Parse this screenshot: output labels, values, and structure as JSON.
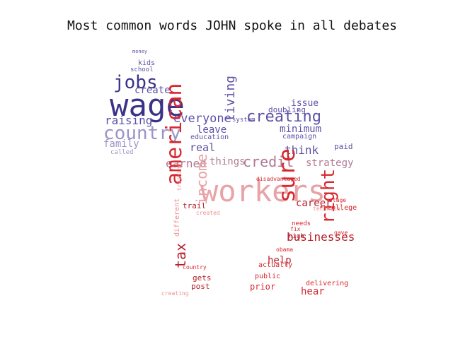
{
  "title": "Most common words JOHN spoke in all debates",
  "palette": {
    "purple_dark": "#3b3289",
    "purple": "#5d52a6",
    "purple_light": "#9b94c8",
    "mauve": "#b07a92",
    "pink_light": "#e8a3a8",
    "red": "#d7282f",
    "red_dark": "#b51f2a",
    "red_light": "#ef8f8f"
  },
  "words": [
    {
      "text": "wage",
      "color": "purple_dark",
      "emphasis": "largest"
    },
    {
      "text": "jobs",
      "color": "purple_dark"
    },
    {
      "text": "country",
      "color": "purple_light"
    },
    {
      "text": "creating",
      "color": "purple"
    },
    {
      "text": "everyone",
      "color": "purple"
    },
    {
      "text": "raising",
      "color": "purple"
    },
    {
      "text": "create",
      "color": "purple"
    },
    {
      "text": "family",
      "color": "purple_light"
    },
    {
      "text": "leave",
      "color": "purple"
    },
    {
      "text": "minimum",
      "color": "purple"
    },
    {
      "text": "credit",
      "color": "mauve"
    },
    {
      "text": "strategy",
      "color": "mauve"
    },
    {
      "text": "earned",
      "color": "mauve"
    },
    {
      "text": "things",
      "color": "mauve"
    },
    {
      "text": "living",
      "color": "purple"
    },
    {
      "text": "think",
      "color": "purple"
    },
    {
      "text": "real",
      "color": "purple"
    },
    {
      "text": "issue",
      "color": "purple"
    },
    {
      "text": "doubling",
      "color": "purple"
    },
    {
      "text": "paid",
      "color": "purple"
    },
    {
      "text": "campaign",
      "color": "purple"
    },
    {
      "text": "education",
      "color": "purple"
    },
    {
      "text": "system",
      "color": "purple"
    },
    {
      "text": "kids",
      "color": "purple"
    },
    {
      "text": "school",
      "color": "purple"
    },
    {
      "text": "money",
      "color": "purple"
    },
    {
      "text": "called",
      "color": "purple_light"
    },
    {
      "text": "workers",
      "color": "pink_light",
      "emphasis": "largest"
    },
    {
      "text": "american",
      "color": "red"
    },
    {
      "text": "sure",
      "color": "red"
    },
    {
      "text": "right",
      "color": "red"
    },
    {
      "text": "income",
      "color": "pink_light"
    },
    {
      "text": "tax",
      "color": "red_dark"
    },
    {
      "text": "career",
      "color": "red_dark"
    },
    {
      "text": "businesses",
      "color": "red_dark"
    },
    {
      "text": "help",
      "color": "red_dark"
    },
    {
      "text": "hear",
      "color": "red"
    },
    {
      "text": "college",
      "color": "red"
    },
    {
      "text": "trail",
      "color": "red_dark"
    },
    {
      "text": "actually",
      "color": "red"
    },
    {
      "text": "public",
      "color": "red"
    },
    {
      "text": "prior",
      "color": "red"
    },
    {
      "text": "delivering",
      "color": "red"
    },
    {
      "text": "post",
      "color": "red_dark"
    },
    {
      "text": "gets",
      "color": "red_dark"
    },
    {
      "text": "needs",
      "color": "red"
    },
    {
      "text": "different",
      "color": "red_light"
    },
    {
      "text": "training",
      "color": "red_light"
    },
    {
      "text": "stage",
      "color": "red"
    },
    {
      "text": "technical",
      "color": "red_light"
    },
    {
      "text": "high",
      "color": "red_dark"
    },
    {
      "text": "fix",
      "color": "red"
    },
    {
      "text": "obama",
      "color": "red"
    },
    {
      "text": "creating",
      "color": "red_light"
    },
    {
      "text": "created",
      "color": "red_light"
    },
    {
      "text": "country",
      "color": "red"
    },
    {
      "text": "gave",
      "color": "red"
    },
    {
      "text": "disadvantaged",
      "color": "red"
    }
  ]
}
